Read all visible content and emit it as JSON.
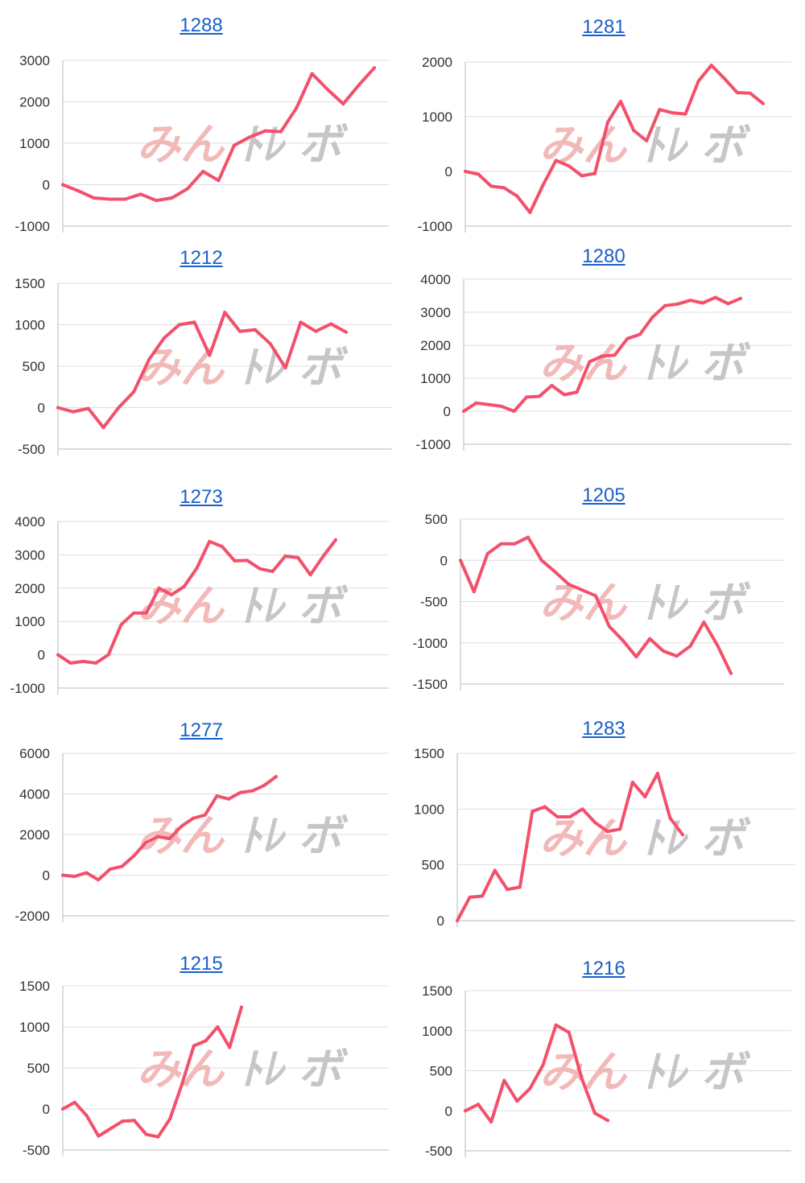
{
  "colors": {
    "line": "#f3506c",
    "grid": "#dddddd",
    "axis": "#bbbbbb",
    "link": "#1a5fc8",
    "watermark_pink": "#f2b6b6",
    "watermark_gray": "#c4c4c4"
  },
  "watermark": {
    "text_left": "みん",
    "text_right": "ﾄﾚ ボ"
  },
  "chart_data": [
    {
      "type": "line",
      "title": "1288",
      "xlabel": "",
      "ylabel": "",
      "ylim": [
        -1000,
        3000
      ],
      "yticks": [
        -1000,
        0,
        1000,
        2000,
        3000
      ],
      "values": [
        0,
        -150,
        -320,
        -350,
        -350,
        -230,
        -380,
        -320,
        -100,
        320,
        100,
        950,
        1150,
        1300,
        1280,
        1850,
        2680,
        2300,
        1950,
        2400,
        2820
      ]
    },
    {
      "type": "line",
      "title": "1281",
      "xlabel": "",
      "ylabel": "",
      "ylim": [
        -1000,
        2000
      ],
      "yticks": [
        -1000,
        0,
        1000,
        2000
      ],
      "values": [
        0,
        -50,
        -270,
        -300,
        -450,
        -750,
        -250,
        200,
        100,
        -80,
        -40,
        900,
        1280,
        750,
        560,
        1130,
        1070,
        1050,
        1650,
        1940,
        1700,
        1440,
        1430,
        1240
      ]
    },
    {
      "type": "line",
      "title": "1212",
      "xlabel": "",
      "ylabel": "",
      "ylim": [
        -500,
        1500
      ],
      "yticks": [
        -500,
        0,
        500,
        1000,
        1500
      ],
      "values": [
        0,
        -50,
        -10,
        -240,
        0,
        190,
        580,
        840,
        1000,
        1030,
        630,
        1150,
        920,
        940,
        770,
        480,
        1030,
        920,
        1010,
        910
      ]
    },
    {
      "type": "line",
      "title": "1280",
      "xlabel": "",
      "ylabel": "",
      "ylim": [
        -1000,
        4000
      ],
      "yticks": [
        -1000,
        0,
        1000,
        2000,
        3000,
        4000
      ],
      "values": [
        0,
        250,
        200,
        150,
        0,
        430,
        450,
        780,
        500,
        580,
        1500,
        1670,
        1700,
        2200,
        2330,
        2850,
        3200,
        3250,
        3360,
        3280,
        3450,
        3260,
        3420
      ]
    },
    {
      "type": "line",
      "title": "1273",
      "xlabel": "",
      "ylabel": "",
      "ylim": [
        -1000,
        4000
      ],
      "yticks": [
        -1000,
        0,
        1000,
        2000,
        3000,
        4000
      ],
      "values": [
        0,
        -250,
        -200,
        -250,
        0,
        900,
        1250,
        1250,
        2000,
        1800,
        2050,
        2600,
        3400,
        3250,
        2820,
        2830,
        2580,
        2500,
        2960,
        2920,
        2400,
        2950,
        3450
      ]
    },
    {
      "type": "line",
      "title": "1205",
      "xlabel": "",
      "ylabel": "",
      "ylim": [
        -1500,
        500
      ],
      "yticks": [
        -1500,
        -1000,
        -500,
        0,
        500
      ],
      "values": [
        0,
        -380,
        80,
        200,
        200,
        280,
        0,
        -140,
        -290,
        -360,
        -430,
        -800,
        -970,
        -1170,
        -950,
        -1100,
        -1160,
        -1040,
        -750,
        -1030,
        -1370
      ]
    },
    {
      "type": "line",
      "title": "1277",
      "xlabel": "",
      "ylabel": "",
      "ylim": [
        -2000,
        6000
      ],
      "yticks": [
        -2000,
        0,
        2000,
        4000,
        6000
      ],
      "values": [
        0,
        -60,
        120,
        -230,
        300,
        430,
        950,
        1600,
        1900,
        1800,
        2400,
        2800,
        2960,
        3900,
        3750,
        4070,
        4150,
        4420,
        4850
      ]
    },
    {
      "type": "line",
      "title": "1283",
      "xlabel": "",
      "ylabel": "",
      "ylim": [
        0,
        1500
      ],
      "yticks": [
        0,
        500,
        1000,
        1500
      ],
      "values": [
        0,
        210,
        220,
        450,
        280,
        300,
        980,
        1020,
        930,
        930,
        1000,
        880,
        800,
        820,
        1240,
        1110,
        1320,
        920,
        770
      ]
    },
    {
      "type": "line",
      "title": "1215",
      "xlabel": "",
      "ylabel": "",
      "ylim": [
        -500,
        1500
      ],
      "yticks": [
        -500,
        0,
        500,
        1000,
        1500
      ],
      "values": [
        0,
        80,
        -80,
        -330,
        -240,
        -150,
        -140,
        -310,
        -340,
        -120,
        300,
        770,
        830,
        1000,
        750,
        1240
      ]
    },
    {
      "type": "line",
      "title": "1216",
      "xlabel": "",
      "ylabel": "",
      "ylim": [
        -500,
        1500
      ],
      "yticks": [
        -500,
        0,
        500,
        1000,
        1500
      ],
      "values": [
        0,
        80,
        -140,
        380,
        120,
        280,
        570,
        1070,
        980,
        400,
        -30,
        -120
      ]
    }
  ]
}
